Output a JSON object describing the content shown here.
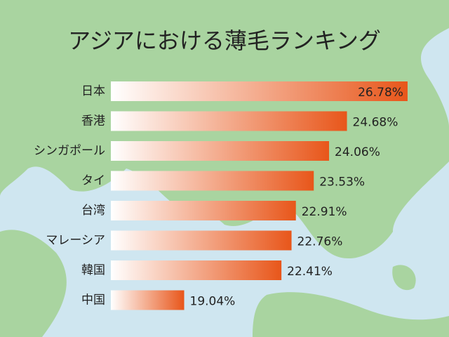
{
  "chart_data": {
    "type": "bar",
    "orientation": "horizontal",
    "title": "アジアにおける薄毛ランキング",
    "categories": [
      "日本",
      "香港",
      "シンガポール",
      "タイ",
      "台湾",
      "マレーシア",
      "韓国",
      "中国"
    ],
    "values": [
      26.78,
      24.68,
      24.06,
      23.53,
      22.91,
      22.76,
      22.41,
      19.04
    ],
    "value_labels": [
      "26.78%",
      "24.68%",
      "24.06%",
      "23.53%",
      "22.91%",
      "22.76%",
      "22.41%",
      "19.04%"
    ],
    "color": "#e8561a",
    "xlim": [
      16.5,
      27
    ]
  }
}
